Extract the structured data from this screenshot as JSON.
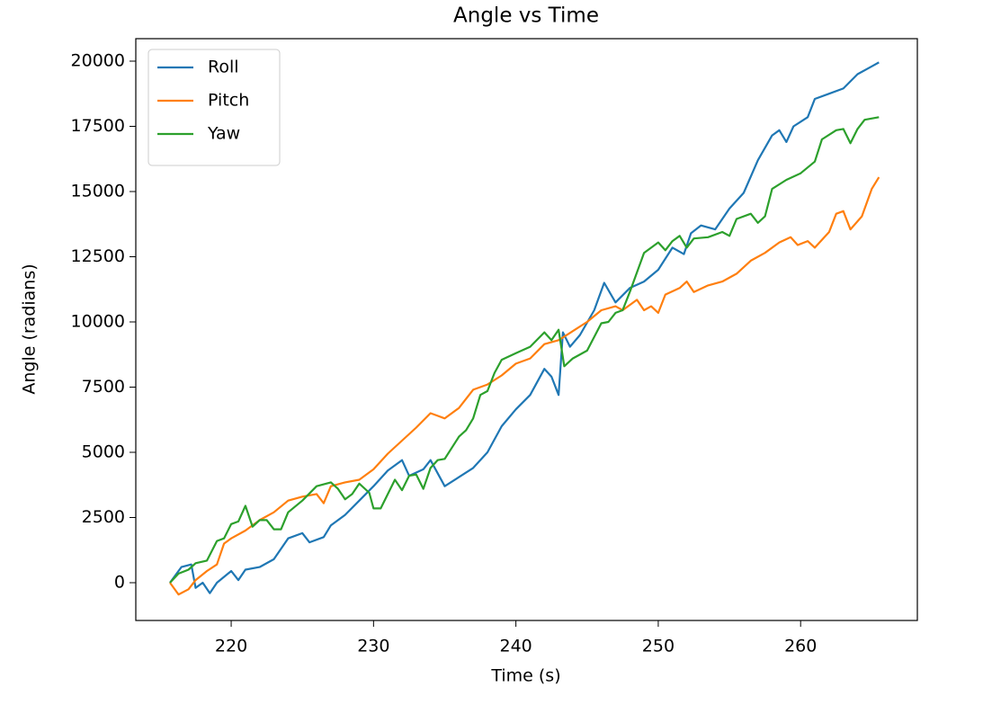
{
  "chart_data": {
    "type": "line",
    "title": "Angle vs Time",
    "x_label": "Time (s)",
    "y_label": "Angle (radians)",
    "xlim": [
      213.3,
      268.2
    ],
    "ylim": [
      -1448,
      20862
    ],
    "xticks": [
      220,
      230,
      240,
      250,
      260
    ],
    "yticks": [
      0,
      2500,
      5000,
      7500,
      10000,
      12500,
      15000,
      17500,
      20000
    ],
    "legend": "upper left",
    "series": [
      {
        "name": "Roll",
        "color": "#1f77b4",
        "x": [
          215.7,
          216.5,
          217.2,
          217.5,
          218,
          218.5,
          219,
          220,
          220.5,
          221,
          222,
          223,
          224,
          225,
          225.5,
          226.5,
          227,
          228,
          229,
          230,
          231,
          232,
          232.5,
          233.5,
          234,
          235,
          236,
          237,
          238,
          239,
          240,
          241,
          242,
          242.5,
          243,
          243.3,
          243.8,
          244.5,
          245.5,
          246.2,
          247,
          248,
          249,
          250,
          251,
          251.8,
          252.3,
          253,
          254,
          255,
          256,
          257,
          258,
          258.5,
          259,
          259.5,
          260.5,
          261,
          262,
          263,
          264,
          265,
          265.5
        ],
        "values": [
          0,
          600,
          700,
          -200,
          0,
          -400,
          0,
          450,
          100,
          500,
          600,
          900,
          1700,
          1900,
          1550,
          1750,
          2200,
          2600,
          3150,
          3700,
          4300,
          4700,
          4100,
          4350,
          4700,
          3700,
          4050,
          4400,
          5000,
          6000,
          6650,
          7200,
          8200,
          7900,
          7200,
          9600,
          9050,
          9500,
          10450,
          11500,
          10750,
          11300,
          11550,
          12000,
          12850,
          12600,
          13400,
          13700,
          13550,
          14350,
          14950,
          16200,
          17150,
          17350,
          16900,
          17500,
          17850,
          18550,
          18750,
          18950,
          19500,
          19800,
          19950
        ]
      },
      {
        "name": "Pitch",
        "color": "#ff7f0e",
        "x": [
          215.7,
          216.3,
          217,
          217.5,
          218.3,
          219,
          219.5,
          220,
          221,
          222,
          223,
          224,
          225,
          226,
          226.5,
          227,
          228,
          229,
          230,
          231,
          232,
          233,
          234,
          234.5,
          235,
          236,
          237,
          238,
          239,
          240,
          241,
          242,
          243,
          244,
          245,
          246,
          247,
          247.5,
          248.5,
          249,
          249.5,
          250,
          250.5,
          251.5,
          252,
          252.5,
          253.5,
          254.5,
          255.5,
          256.5,
          257.5,
          258.5,
          259.3,
          259.8,
          260.5,
          261,
          262,
          262.5,
          263,
          263.5,
          264.3,
          265,
          265.5
        ],
        "values": [
          0,
          -450,
          -250,
          100,
          450,
          700,
          1500,
          1700,
          2000,
          2400,
          2700,
          3150,
          3300,
          3400,
          3050,
          3700,
          3850,
          3950,
          4350,
          4950,
          5450,
          5950,
          6500,
          6400,
          6300,
          6700,
          7400,
          7600,
          7950,
          8400,
          8600,
          9150,
          9300,
          9650,
          10000,
          10450,
          10600,
          10450,
          10850,
          10450,
          10600,
          10350,
          11050,
          11300,
          11550,
          11150,
          11400,
          11550,
          11850,
          12350,
          12650,
          13050,
          13250,
          12950,
          13100,
          12850,
          13450,
          14150,
          14250,
          13550,
          14050,
          15100,
          15550
        ]
      },
      {
        "name": "Yaw",
        "color": "#2ca02c",
        "x": [
          215.7,
          216.3,
          217,
          217.5,
          218.3,
          219,
          219.5,
          220,
          220.5,
          221,
          221.5,
          222,
          222.5,
          223,
          223.5,
          224,
          225,
          226,
          227,
          227.5,
          228,
          228.5,
          229,
          229.7,
          230,
          230.5,
          231.5,
          232,
          232.5,
          233,
          233.5,
          234,
          234.5,
          235,
          236,
          236.5,
          237,
          237.5,
          238,
          238.5,
          239,
          240,
          241,
          242,
          242.5,
          243,
          243.4,
          244,
          245,
          246,
          246.5,
          247,
          247.5,
          248,
          249,
          250,
          250.5,
          251,
          251.5,
          252,
          252.5,
          253.5,
          254.5,
          255,
          255.5,
          256.5,
          257,
          257.5,
          258,
          259,
          260,
          261,
          261.5,
          262.5,
          263,
          263.5,
          264,
          264.5,
          265.5
        ],
        "values": [
          0,
          350,
          500,
          750,
          850,
          1600,
          1700,
          2250,
          2350,
          2950,
          2150,
          2400,
          2400,
          2050,
          2050,
          2700,
          3150,
          3700,
          3850,
          3600,
          3200,
          3400,
          3800,
          3450,
          2850,
          2850,
          3950,
          3550,
          4100,
          4150,
          3600,
          4400,
          4700,
          4750,
          5600,
          5850,
          6300,
          7200,
          7350,
          8050,
          8550,
          8800,
          9050,
          9600,
          9300,
          9700,
          8300,
          8600,
          8900,
          9950,
          10000,
          10350,
          10450,
          11150,
          12650,
          13050,
          12750,
          13100,
          13300,
          12850,
          13200,
          13250,
          13450,
          13300,
          13950,
          14150,
          13800,
          14050,
          15100,
          15450,
          15700,
          16150,
          17000,
          17350,
          17400,
          16850,
          17400,
          17750,
          17850
        ]
      }
    ]
  }
}
